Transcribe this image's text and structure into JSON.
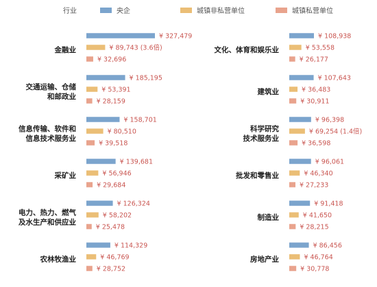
{
  "chart_data": {
    "type": "bar",
    "orientation": "horizontal",
    "legend_title": "行业",
    "legend_position": "top",
    "currency_symbol": "¥",
    "series": [
      {
        "name": "央企",
        "color": "#7ba4cd"
      },
      {
        "name": "城镇非私营单位",
        "color": "#ebbe76"
      },
      {
        "name": "城镇私营单位",
        "color": "#e9a38d"
      }
    ],
    "panels": [
      {
        "label": [
          "金融业"
        ],
        "values": [
          327479,
          89743,
          32696
        ],
        "notes": [
          "",
          "(3.6倍)",
          ""
        ]
      },
      {
        "label": [
          "交通运输、仓储",
          "和邮政业"
        ],
        "values": [
          185195,
          53391,
          28159
        ],
        "notes": [
          "",
          "",
          ""
        ]
      },
      {
        "label": [
          "信息传输、软件和",
          "信息技术服务业"
        ],
        "values": [
          158701,
          80510,
          39518
        ],
        "notes": [
          "",
          "",
          ""
        ]
      },
      {
        "label": [
          "采矿业"
        ],
        "values": [
          139681,
          56946,
          29684
        ],
        "notes": [
          "",
          "",
          ""
        ]
      },
      {
        "label": [
          "电力、热力、燃气",
          "及水生产和供应业"
        ],
        "values": [
          126324,
          58202,
          25478
        ],
        "notes": [
          "",
          "",
          ""
        ]
      },
      {
        "label": [
          "农林牧渔业"
        ],
        "values": [
          114329,
          46769,
          28752
        ],
        "notes": [
          "",
          "",
          ""
        ]
      },
      {
        "label": [
          "文化、体育和娱乐业"
        ],
        "values": [
          108938,
          53558,
          26177
        ],
        "notes": [
          "",
          "",
          ""
        ]
      },
      {
        "label": [
          "建筑业"
        ],
        "values": [
          107643,
          36483,
          30911
        ],
        "notes": [
          "",
          "",
          ""
        ]
      },
      {
        "label": [
          "科学研究",
          "技术服务业"
        ],
        "values": [
          96398,
          69254,
          36598
        ],
        "notes": [
          "",
          "(1.4倍)",
          ""
        ]
      },
      {
        "label": [
          "批发和零售业"
        ],
        "values": [
          96061,
          46340,
          27233
        ],
        "notes": [
          "",
          "",
          ""
        ]
      },
      {
        "label": [
          "制造业"
        ],
        "values": [
          91418,
          41650,
          28215
        ],
        "notes": [
          "",
          "",
          ""
        ]
      },
      {
        "label": [
          "房地产业"
        ],
        "values": [
          86456,
          46764,
          30778
        ],
        "notes": [
          "",
          "",
          ""
        ]
      }
    ]
  }
}
